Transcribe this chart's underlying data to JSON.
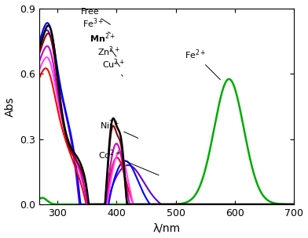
{
  "xlabel": "λ/nm",
  "ylabel": "Abs",
  "xlim": [
    270,
    700
  ],
  "ylim": [
    0.0,
    0.9
  ],
  "yticks": [
    0.0,
    0.3,
    0.6,
    0.9
  ],
  "xticks": [
    300,
    400,
    500,
    600,
    700
  ],
  "figsize": [
    3.92,
    3.04
  ],
  "dpi": 100,
  "colors": {
    "Free": "#000000",
    "Fe3+": "#8B0000",
    "Mn2+": "#CC00CC",
    "Zn2+": "#FF44FF",
    "Cu2+": "#FF0000",
    "Ni2+": "#0000FF",
    "Co2+": "#6600CC",
    "Fe2+": "#00AA00"
  }
}
